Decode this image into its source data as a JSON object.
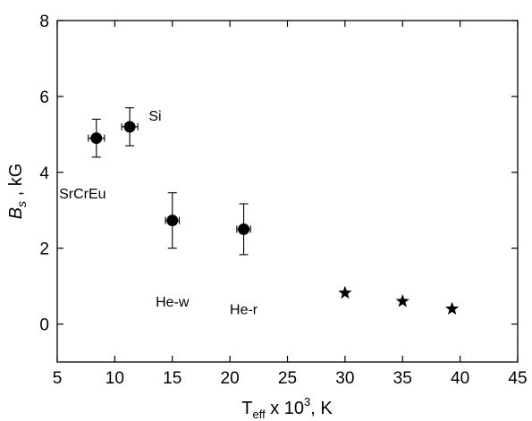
{
  "chart_data": {
    "type": "scatter",
    "xlim": [
      5,
      45
    ],
    "ylim": [
      -1,
      8
    ],
    "xticks": [
      5,
      10,
      15,
      20,
      25,
      30,
      35,
      40,
      45
    ],
    "yticks": [
      0,
      2,
      4,
      6,
      8
    ],
    "xlabel": {
      "main": "T",
      "sub": "eff",
      "mid": " x 10",
      "sup": "3",
      "tail": ", K"
    },
    "ylabel": {
      "main": "B",
      "sub": "s",
      "tail": " , kG"
    },
    "grid": false,
    "series": [
      {
        "marker": "circle",
        "points": [
          {
            "x": 8.4,
            "y": 4.9,
            "xerr": 0.7,
            "yerr": 0.5
          },
          {
            "x": 11.3,
            "y": 5.2,
            "xerr": 0.7,
            "yerr": 0.5
          },
          {
            "x": 15.0,
            "y": 2.73,
            "xerr": 0.6,
            "yerr": 0.73
          },
          {
            "x": 21.2,
            "y": 2.5,
            "xerr": 0.6,
            "yerr": 0.67
          }
        ]
      },
      {
        "marker": "star",
        "points": [
          {
            "x": 30.0,
            "y": 0.82
          },
          {
            "x": 35.0,
            "y": 0.6
          },
          {
            "x": 39.3,
            "y": 0.4
          }
        ]
      }
    ],
    "annotations": [
      {
        "text": "Si",
        "x": 13.5,
        "y": 5.5
      },
      {
        "text": "SrCrEu",
        "x": 7.2,
        "y": 3.45
      },
      {
        "text": "He-w",
        "x": 15.0,
        "y": 0.6
      },
      {
        "text": "He-r",
        "x": 21.2,
        "y": 0.4
      }
    ]
  }
}
